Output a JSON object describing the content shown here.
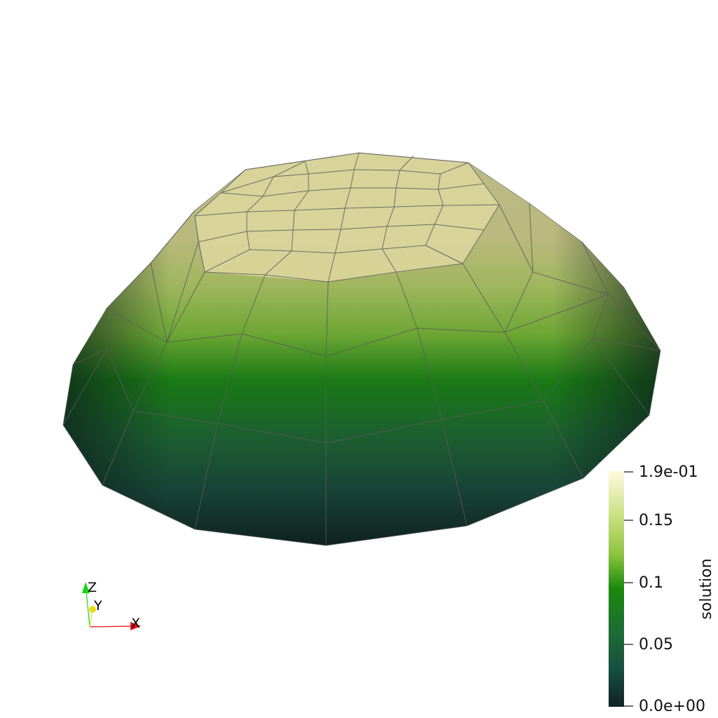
{
  "scalar_bar": {
    "title": "solution",
    "tick_labels": [
      "1.9e-01",
      "0.15",
      "0.1",
      "0.05",
      "0.0e+00"
    ],
    "colormap": [
      "#fdfae0",
      "#c8de7c",
      "#8ec53f",
      "#1a8a0c",
      "#1d6d36",
      "#185040",
      "#0f2226"
    ]
  },
  "orientation_axes": {
    "x_label": "X",
    "y_label": "Y",
    "z_label": "Z",
    "x_color": "#e01010",
    "y_color": "#e8dc1a",
    "z_color": "#12d812"
  },
  "mesh": {
    "edge_color": "#5a5a5a",
    "top_color": "#d8d49a"
  }
}
